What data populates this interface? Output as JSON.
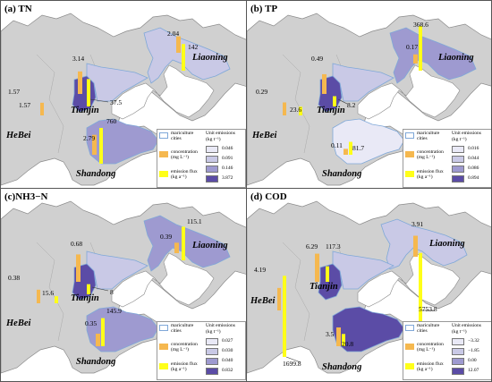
{
  "colors": {
    "land": "#d0d0d0",
    "sea": "#ffffff",
    "concentration_bar": "#f5b84f",
    "flux_bar": "#ffff19",
    "tianjin": "#5b4ca6",
    "class_colors": [
      "#e9e9f6",
      "#c9c9e6",
      "#9e9ad0",
      "#5b4ca6"
    ],
    "boundary": "#7fa8d8"
  },
  "legend": {
    "mariculture": "mariculture cities",
    "concentration_tn": "concentration (mg L⁻¹)",
    "concentration_cod": "concentration (mg L⁻¹)",
    "flux_kg": "emission flux (kg a⁻¹)",
    "unit_title": "Unit emissions",
    "unit_subtitle": "(kg t⁻¹)"
  },
  "panels": {
    "tn": {
      "title": "(a) TN",
      "classes": [
        "0.046",
        "0.091",
        "0.146",
        "3.872"
      ],
      "labels": {
        "liaoning_conc": "2.04",
        "liaoning_flux": "142",
        "tj_conc": "3.14",
        "tj_flux": "37.5",
        "hb_conc": "1.57",
        "hb_flux": "1.57",
        "sd_conc": "2.79",
        "sd_flux": "760"
      },
      "values": {
        "tj_conc": 3.14,
        "tj_flux": 37.5,
        "ln_conc": 2.04,
        "ln_flux": 142,
        "hb_conc": 1.57,
        "hb_flux": 1.57,
        "sd_conc": 2.79,
        "sd_flux": 760
      }
    },
    "tp": {
      "title": "(b) TP",
      "classes": [
        "0.016",
        "0.044",
        "0.086",
        "0.894"
      ],
      "labels": {
        "liaoning_conc": "0.17",
        "liaoning_flux": "368.6",
        "tj_conc": "0.49",
        "tj_flux": "8.2",
        "hb_conc": "0.29",
        "hb_flux": "23.6",
        "sd_conc": "0.11",
        "sd_flux": "81.7"
      },
      "values": {
        "tj_conc": 0.49,
        "tj_flux": 8.2,
        "ln_conc": 0.17,
        "ln_flux": 368.6,
        "hb_conc": 0.29,
        "hb_flux": 23.6,
        "sd_conc": 0.11,
        "sd_flux": 81.7
      }
    },
    "nh3": {
      "title": "(c)NH3−N",
      "classes": [
        "0.027",
        "0.030",
        "0.040",
        "0.832"
      ],
      "labels": {
        "liaoning_conc": "0.39",
        "liaoning_flux": "115.1",
        "tj_conc": "0.68",
        "tj_flux": "8",
        "hb_conc": "0.38",
        "hb_flux": "15.6",
        "sd_conc": "0.35",
        "sd_flux": "145.9"
      },
      "values": {
        "tj_conc": 0.68,
        "tj_flux": 8,
        "ln_conc": 0.39,
        "ln_flux": 115.1,
        "hb_conc": 0.38,
        "hb_flux": 15.6,
        "sd_conc": 0.35,
        "sd_flux": 145.9
      }
    },
    "cod": {
      "title": "(d) COD",
      "classes": [
        "−3.32",
        "−1.85",
        "0.00",
        "12.07"
      ],
      "labels": {
        "liaoning_conc": "3.91",
        "liaoning_flux": "5753.8",
        "tj_conc": "6.29",
        "tj_flux": "117.3",
        "hb_conc": "4.19",
        "hb_flux": "1699.8",
        "sd_conc": "3.5",
        "sd_flux": "20.8"
      },
      "values": {
        "tj_conc": 6.29,
        "tj_flux": 117.3,
        "ln_conc": 3.91,
        "ln_flux": 5753.8,
        "hb_conc": 4.19,
        "hb_flux": 1699.8,
        "sd_conc": 3.5,
        "sd_flux": 20.8
      }
    }
  },
  "provinces": {
    "liaoning": "Liaoning",
    "tianjin": "Tianjin",
    "hebei": "HeBei",
    "shandong": "Shandong"
  }
}
